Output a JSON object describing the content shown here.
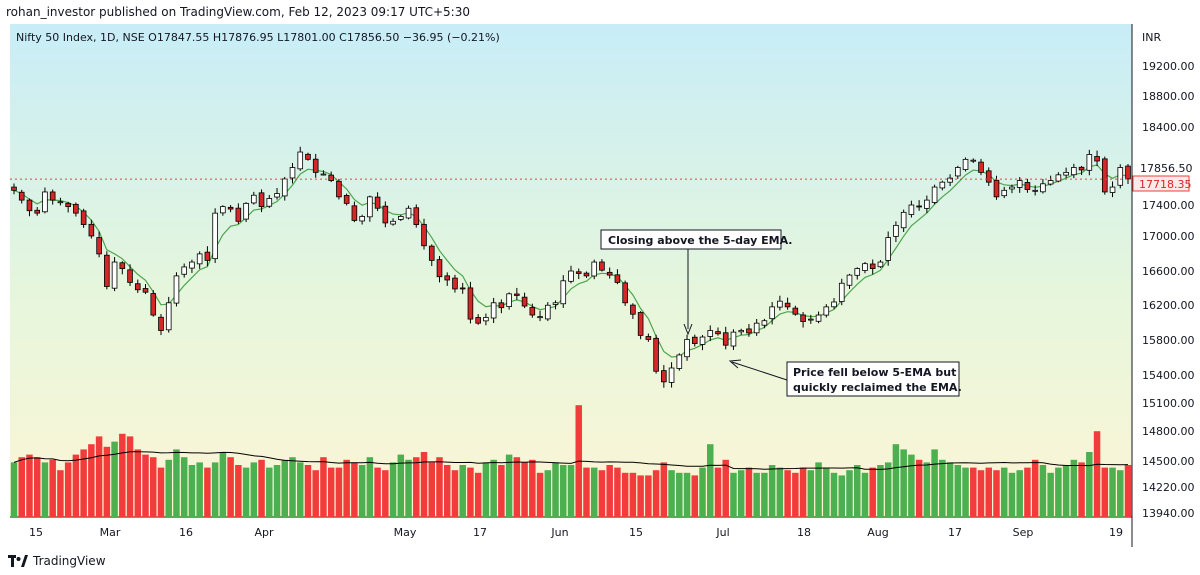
{
  "header": {
    "published_text": "rohan_investor published on TradingView.com, Feb 12, 2023 09:17 UTC+5:30"
  },
  "footer": {
    "brand": "TradingView"
  },
  "chart_data": {
    "type": "candlestick",
    "symbol_line": "Nifty 50 Index, 1D, NSE  O17847.55  H17876.95  L17801.00  C17856.50  −36.95 (−0.21%)",
    "currency": "INR",
    "price_ticks": [
      "19200.00",
      "18800.00",
      "18400.00",
      "17400.00",
      "17000.00",
      "16600.00",
      "16200.00",
      "15800.00",
      "15400.00",
      "15100.00",
      "14800.00",
      "14500.00",
      "14220.00",
      "13940.00"
    ],
    "last_price_label": "17856.50",
    "current_price_label": "17718.35",
    "x_labels": [
      "15",
      "Mar",
      "16",
      "Apr",
      "May",
      "17",
      "Jun",
      "15",
      "Jul",
      "18",
      "Aug",
      "17",
      "Sep",
      "19"
    ],
    "ema_label": "5-day EMA",
    "closes": [
      17580,
      17460,
      17330,
      17300,
      17560,
      17460,
      17440,
      17380,
      17300,
      17160,
      17020,
      16800,
      16400,
      16700,
      16620,
      16450,
      16360,
      16330,
      16050,
      15860,
      16200,
      16530,
      16640,
      16700,
      16800,
      16720,
      17300,
      17380,
      17350,
      17200,
      17420,
      17520,
      17380,
      17480,
      17540,
      17720,
      17860,
      18050,
      17960,
      17800,
      17780,
      17700,
      17500,
      17420,
      17210,
      17260,
      17500,
      17360,
      17180,
      17200,
      17260,
      17360,
      17160,
      16900,
      16720,
      16520,
      16480,
      16370,
      16380,
      16000,
      15950,
      16020,
      16200,
      16140,
      16310,
      16290,
      16160,
      16050,
      16030,
      16170,
      16200,
      16470,
      16590,
      16560,
      16530,
      16700,
      16600,
      16540,
      16450,
      16200,
      16060,
      15800,
      15750,
      15360,
      15230,
      15400,
      15560,
      15750,
      15700,
      15780,
      15860,
      15820,
      15680,
      15840,
      15860,
      15830,
      15950,
      15980,
      16150,
      16220,
      16150,
      16060,
      15970,
      16000,
      16050,
      16150,
      16210,
      16440,
      16540,
      16620,
      16680,
      16620,
      16700,
      17000,
      17150,
      17310,
      17400,
      17380,
      17460,
      17620,
      17680,
      17730,
      17860,
      17960,
      17950,
      17800,
      17680,
      17500,
      17580,
      17620,
      17700,
      17590,
      17580,
      17660,
      17700,
      17770,
      17800,
      17860,
      17830,
      18020,
      17940,
      17560,
      17620,
      17860,
      17720
    ],
    "volumes": [
      1.05,
      1.15,
      1.2,
      1.15,
      1.05,
      1.1,
      0.9,
      1.05,
      1.2,
      1.3,
      1.4,
      1.55,
      1.35,
      1.45,
      1.6,
      1.55,
      1.3,
      1.2,
      1.15,
      0.95,
      1.1,
      1.3,
      1.15,
      1.0,
      1.05,
      0.95,
      1.05,
      1.25,
      1.15,
      1.0,
      0.95,
      1.05,
      1.1,
      0.95,
      1.0,
      1.1,
      1.15,
      1.05,
      1.0,
      0.9,
      1.15,
      0.95,
      0.95,
      1.1,
      1.05,
      1.0,
      1.15,
      0.95,
      0.9,
      1.05,
      1.2,
      1.1,
      1.15,
      1.25,
      1.05,
      1.15,
      1.0,
      0.9,
      1.0,
      0.95,
      0.85,
      1.05,
      1.1,
      1.0,
      1.2,
      1.15,
      1.05,
      1.1,
      0.85,
      0.9,
      1.05,
      1.0,
      1.0,
      2.15,
      0.95,
      0.95,
      0.9,
      1.0,
      0.95,
      0.85,
      0.85,
      0.8,
      0.8,
      0.9,
      1.05,
      0.9,
      0.85,
      0.85,
      0.8,
      0.95,
      1.4,
      0.95,
      1.1,
      0.85,
      0.9,
      0.95,
      0.85,
      0.85,
      1.0,
      0.95,
      0.9,
      0.85,
      0.95,
      0.9,
      1.05,
      0.95,
      0.85,
      0.8,
      0.9,
      1.0,
      0.85,
      0.95,
      1.0,
      1.05,
      1.4,
      1.3,
      1.2,
      1.1,
      1.05,
      1.3,
      1.1,
      1.05,
      1.0,
      0.95,
      0.95,
      0.9,
      0.95,
      0.9,
      0.95,
      0.85,
      0.9,
      0.95,
      1.1,
      1.0,
      0.85,
      0.95,
      1.0,
      1.1,
      1.05,
      1.25,
      1.65,
      0.95,
      0.95,
      0.9,
      1.0
    ],
    "annotations": [
      {
        "text": "Closing above the 5-day EMA.",
        "type": "callout"
      },
      {
        "text_lines": [
          "Price fell below 5-EMA but",
          "quickly reclaimed the EMA."
        ],
        "type": "callout"
      }
    ],
    "colors": {
      "up_fill": "#ffffff",
      "up_border": "#000000",
      "down_fill": "#d62728",
      "down_border": "#000000",
      "ema_line": "#4ca64c",
      "vol_up": "#4caf50",
      "vol_down": "#f23c3c",
      "vol_ma": "#000000",
      "bg_top": "#c8edf7",
      "bg_bottom": "#fdf6d8",
      "last_price_bg": "#f23c3c"
    },
    "price_range": [
      13800,
      19450
    ]
  }
}
